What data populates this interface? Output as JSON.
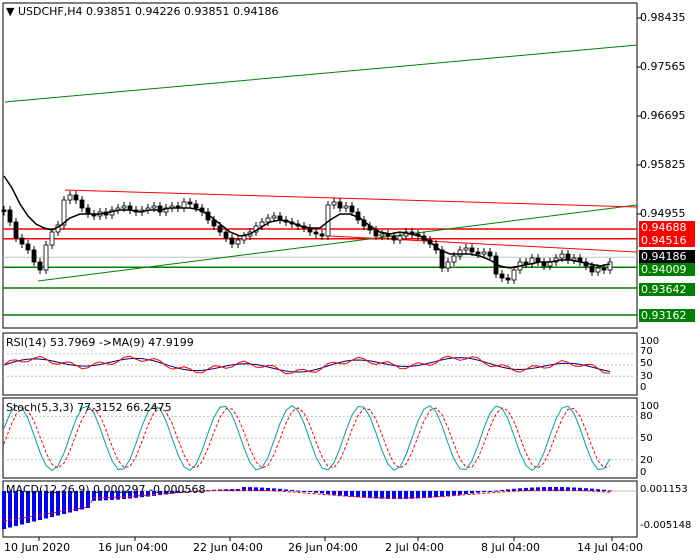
{
  "header": {
    "symbol_line": "USDCHF,H4  0.93851  0.94226  0.93851  0.94186",
    "rsi_line": "RSI(14) 53.7969  ->MA(9) 47.9199",
    "stoch_line": "Stoch(5,3,3) 77.3152 66.2475",
    "macd_line": "MACD(12,26,9) 0.000297 -0.000568"
  },
  "price_axis": [
    "0.98435",
    "0.97565",
    "0.96695",
    "0.95825",
    "0.94955"
  ],
  "price_axis_partial": "0.93162",
  "price_tags": [
    {
      "text": "0.94688",
      "color": "#ff0000"
    },
    {
      "text": "0.94516",
      "color": "#ff0000"
    },
    {
      "text": "0.94186",
      "color": "#000000"
    },
    {
      "text": "0.94009",
      "color": "#008000"
    },
    {
      "text": "0.93642",
      "color": "#008000"
    },
    {
      "text": "0.93162",
      "color": "#008000"
    }
  ],
  "rsi_axis": [
    "100",
    "70",
    "50",
    "30",
    "0"
  ],
  "stoch_axis": [
    "100",
    "80",
    "50",
    "20",
    "0"
  ],
  "macd_axis": [
    "0.001153",
    "-0.005148"
  ],
  "time_axis": [
    "10 Jun 2020",
    "16 Jun 04:00",
    "22 Jun 04:00",
    "26 Jun 04:00",
    "2 Jul 04:00",
    "8 Jul 04:00",
    "14 Jul 04:00"
  ],
  "colors": {
    "bull": "#008000",
    "bear": "#ff0000",
    "ma": "#000000",
    "rsi": "#000080",
    "rsi_ma": "#ff0000",
    "stoch_main": "#00a0a0",
    "stoch_signal": "#ff0000",
    "macd": "#0000ff",
    "macd_signal": "#ff0000"
  }
}
